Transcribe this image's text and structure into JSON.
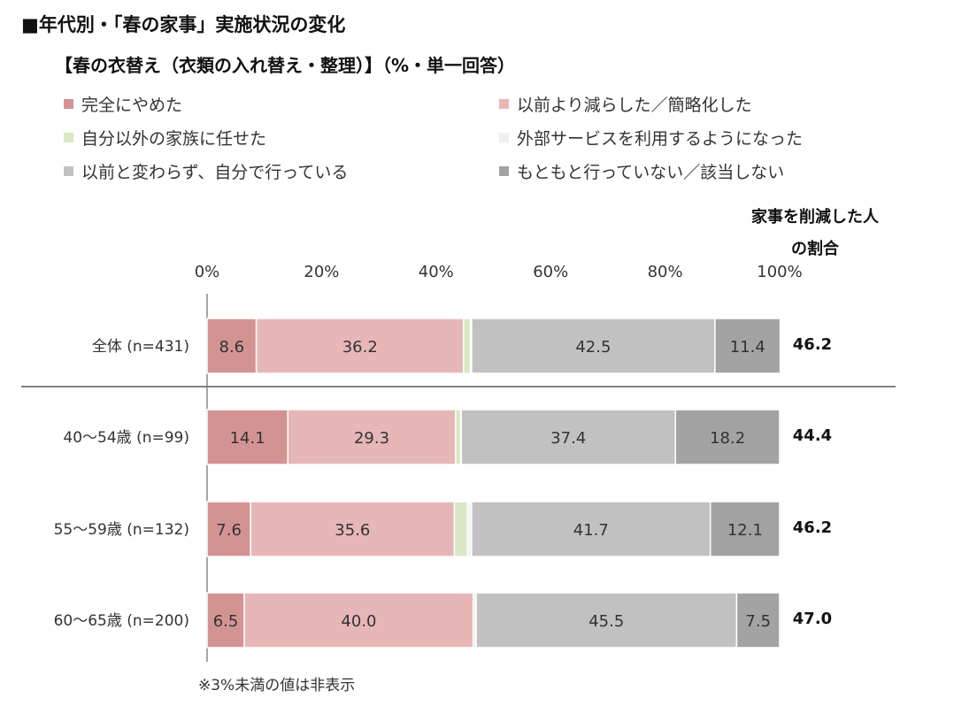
{
  "header": {
    "title": "■年代別・「春の家事」実施状況の変化",
    "subtitle": "【春の衣替え（衣類の入れ替え・整理）】（%・単一回答）"
  },
  "side_header": {
    "line1": "家事を削減した人",
    "line2": "の割合"
  },
  "footnote": "※3%未満の値は非表示",
  "colors": {
    "quit": "#d49393",
    "reduced": "#e7b7b8",
    "family": "#d7e8c3",
    "service": "#f2f2f2",
    "same": "#c1c1c1",
    "never": "#a3a3a3"
  },
  "chart_data": {
    "type": "bar",
    "orientation": "horizontal",
    "stacked": true,
    "x_ticks": [
      "0%",
      "20%",
      "40%",
      "60%",
      "80%",
      "100%"
    ],
    "xlim": [
      0,
      100
    ],
    "categories": [
      "全体 (n=431)",
      "40～54歳 (n=99)",
      "55～59歳 (n=132)",
      "60～65歳 (n=200)"
    ],
    "series": [
      {
        "name": "完全にやめた",
        "color_key": "quit",
        "values": [
          8.6,
          14.1,
          7.6,
          6.5
        ],
        "labels": [
          "8.6",
          "14.1",
          "7.6",
          "6.5"
        ]
      },
      {
        "name": "以前より減らした／簡略化した",
        "color_key": "reduced",
        "values": [
          36.2,
          29.3,
          35.6,
          40.0
        ],
        "labels": [
          "36.2",
          "29.3",
          "35.6",
          "40.0"
        ]
      },
      {
        "name": "自分以外の家族に任せた",
        "color_key": "family",
        "values": [
          1.2,
          0.9,
          2.3,
          0.4
        ],
        "labels": [
          "",
          "",
          "",
          ""
        ]
      },
      {
        "name": "外部サービスを利用するようになった",
        "color_key": "service",
        "values": [
          0.2,
          0.1,
          0.7,
          0.1
        ],
        "labels": [
          "",
          "",
          "",
          ""
        ]
      },
      {
        "name": "以前と変わらず、自分で行っている",
        "color_key": "same",
        "values": [
          42.5,
          37.4,
          41.7,
          45.5
        ],
        "labels": [
          "42.5",
          "37.4",
          "41.7",
          "45.5"
        ]
      },
      {
        "name": "もともと行っていない／該当しない",
        "color_key": "never",
        "values": [
          11.4,
          18.2,
          12.1,
          7.5
        ],
        "labels": [
          "11.4",
          "18.2",
          "12.1",
          "7.5"
        ]
      }
    ],
    "reduced_share": [
      "46.2",
      "44.4",
      "46.2",
      "47.0"
    ],
    "legend_position": "top",
    "grid": false
  }
}
